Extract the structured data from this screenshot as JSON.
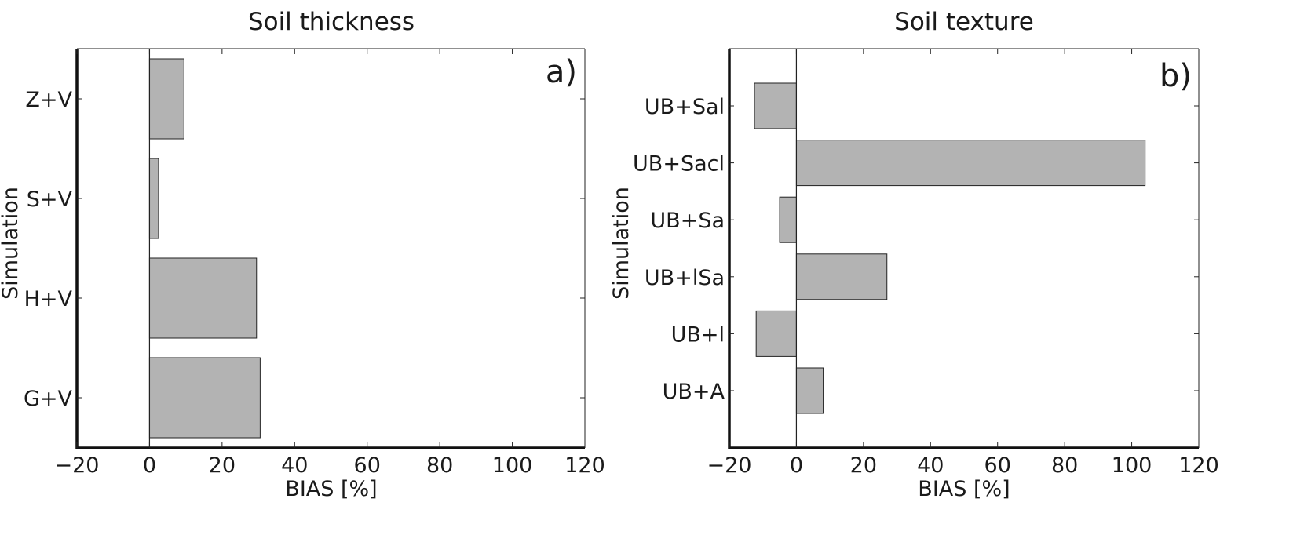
{
  "chart_data": [
    {
      "type": "bar",
      "orientation": "horizontal",
      "title": "Soil thickness",
      "panel_label": "a)",
      "xlabel": "BIAS [%]",
      "ylabel": "Simulation",
      "xlim": [
        -20,
        120
      ],
      "xticks": [
        -20,
        0,
        20,
        40,
        60,
        80,
        100,
        120
      ],
      "xtick_labels": [
        "−20",
        "0",
        "20",
        "40",
        "60",
        "80",
        "100",
        "120"
      ],
      "categories": [
        "Z+V",
        "S+V",
        "H+V",
        "G+V"
      ],
      "values": [
        9.5,
        2.5,
        29.5,
        30.5
      ],
      "bar_color": "#b3b3b3",
      "grid": false
    },
    {
      "type": "bar",
      "orientation": "horizontal",
      "title": "Soil texture",
      "panel_label": "b)",
      "xlabel": "BIAS [%]",
      "ylabel": "Simulation",
      "xlim": [
        -20,
        120
      ],
      "xticks": [
        -20,
        0,
        20,
        40,
        60,
        80,
        100,
        120
      ],
      "xtick_labels": [
        "−20",
        "0",
        "20",
        "40",
        "60",
        "80",
        "100",
        "120"
      ],
      "categories": [
        "UB+Sal",
        "UB+Sacl",
        "UB+Sa",
        "UB+lSa",
        "UB+l",
        "UB+A"
      ],
      "values": [
        -12.5,
        104,
        -5,
        27,
        -12,
        8
      ],
      "bar_color": "#b3b3b3",
      "grid": false
    }
  ]
}
